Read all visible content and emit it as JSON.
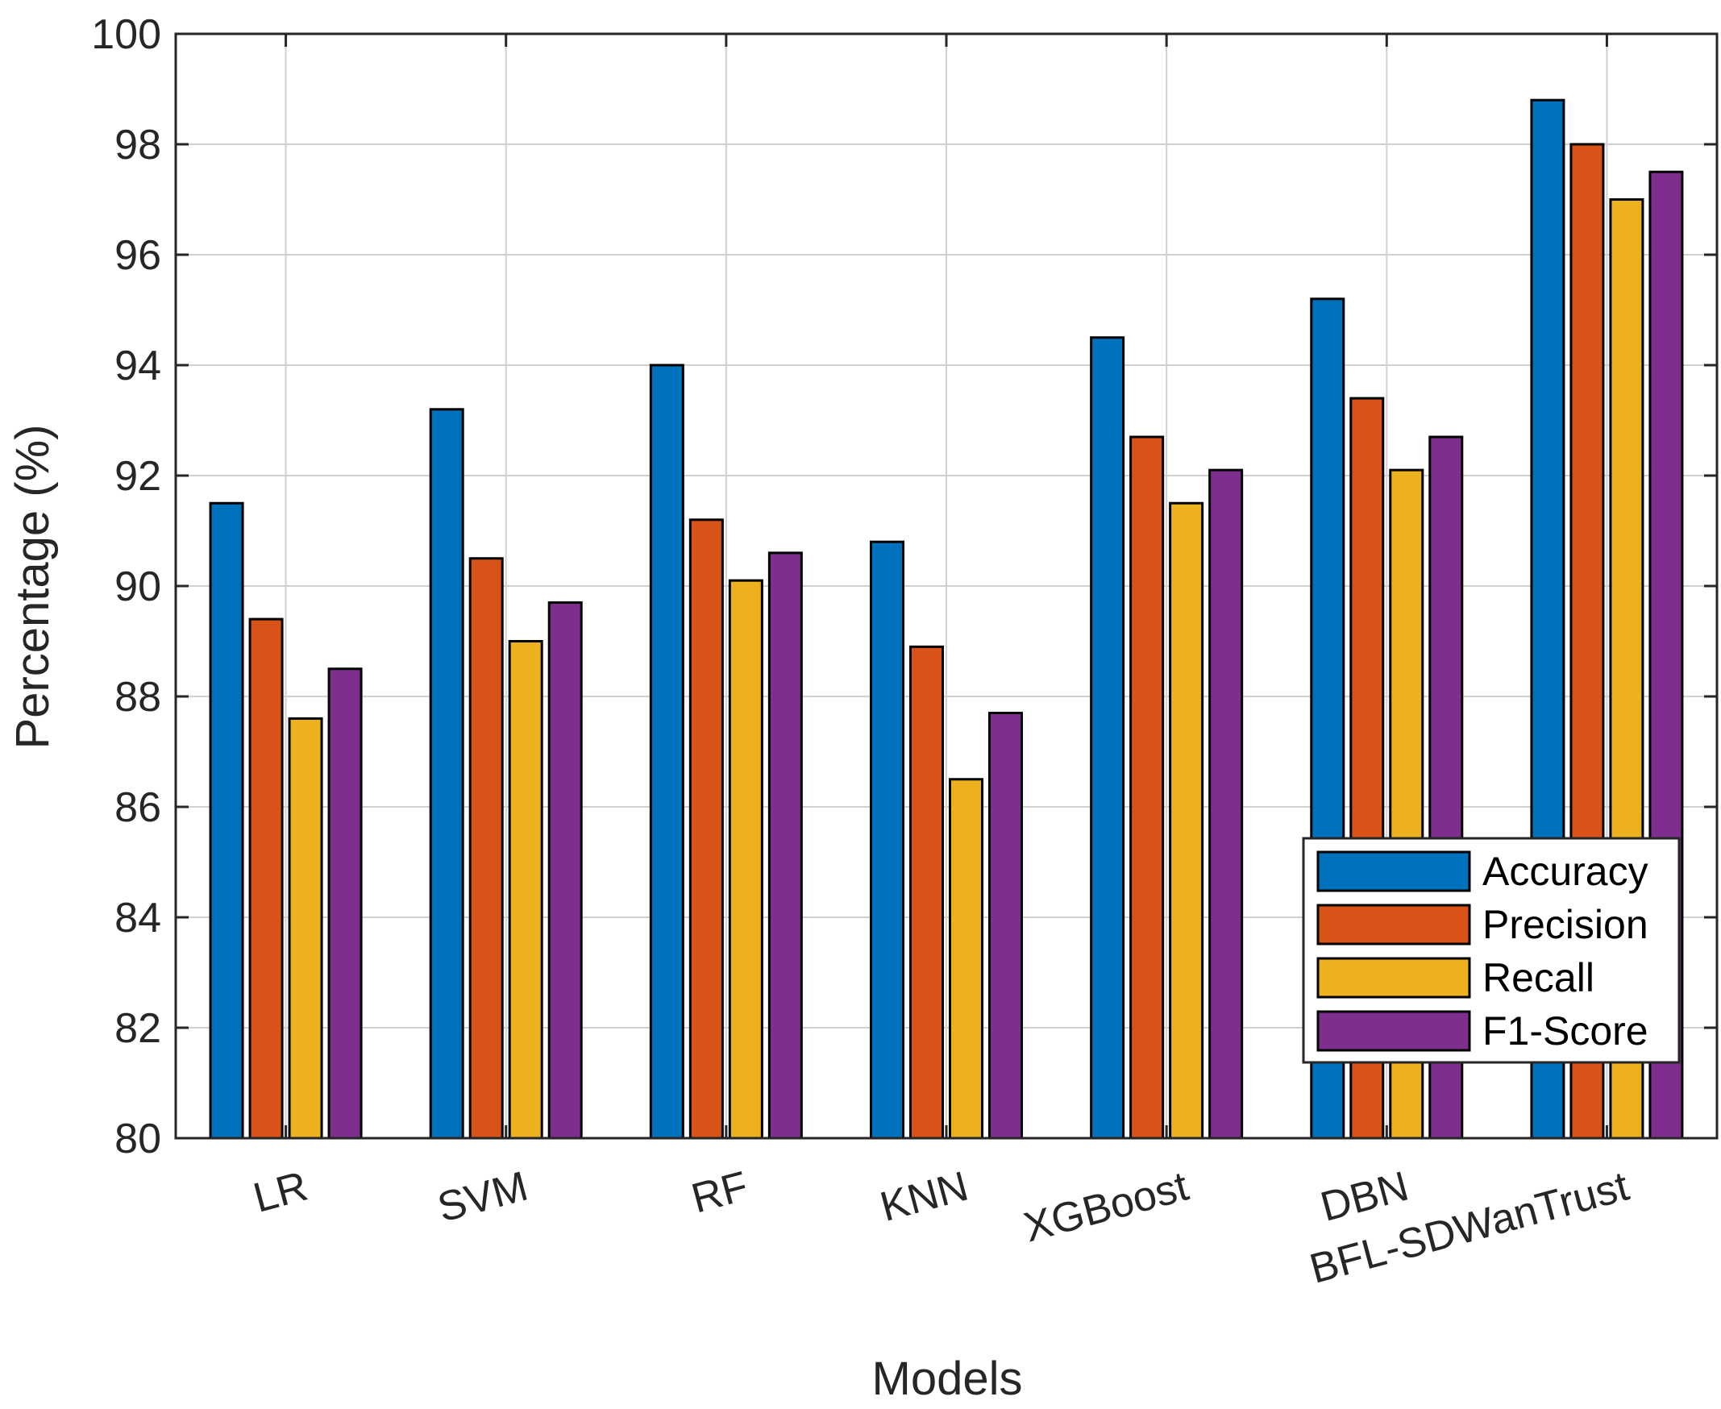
{
  "chart_data": {
    "type": "bar",
    "title": "",
    "xlabel": "Models",
    "ylabel": "Percentage (%)",
    "ylim": [
      80,
      100
    ],
    "yticks": [
      80,
      82,
      84,
      86,
      88,
      90,
      92,
      94,
      96,
      98,
      100
    ],
    "grid": true,
    "legend_position": "bottom-right",
    "categories": [
      "LR",
      "SVM",
      "RF",
      "KNN",
      "XGBoost",
      "DBN",
      "BFL-SDWanTrust"
    ],
    "series": [
      {
        "name": "Accuracy",
        "color": "#0072BD",
        "values": [
          91.5,
          93.2,
          94.0,
          90.8,
          94.5,
          95.2,
          98.8
        ]
      },
      {
        "name": "Precision",
        "color": "#D95319",
        "values": [
          89.4,
          90.5,
          91.2,
          88.9,
          92.7,
          93.4,
          98.0
        ]
      },
      {
        "name": "Recall",
        "color": "#EDB120",
        "values": [
          87.6,
          89.0,
          90.1,
          86.5,
          91.5,
          92.1,
          97.0
        ]
      },
      {
        "name": "F1-Score",
        "color": "#7E2F8E",
        "values": [
          88.5,
          89.7,
          90.6,
          87.7,
          92.1,
          92.7,
          97.5
        ]
      }
    ]
  }
}
